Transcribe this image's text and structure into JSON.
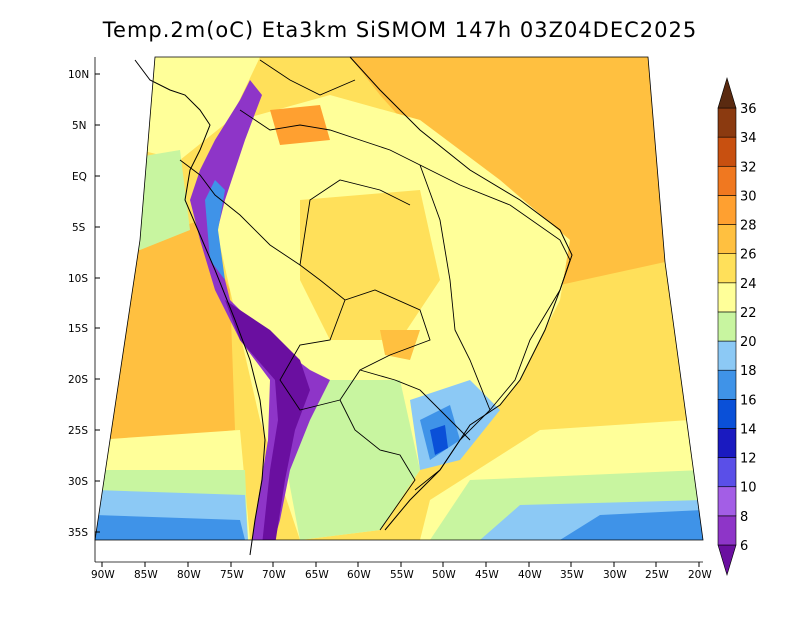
{
  "title": "Temp.2m(oC) Eta3km SiSMOM 147h 03Z04DEC2025",
  "map": {
    "lat_labels": [
      "10N",
      "5N",
      "EQ",
      "5S",
      "10S",
      "15S",
      "20S",
      "25S",
      "30S",
      "35S"
    ],
    "lon_labels": [
      "90W",
      "85W",
      "80W",
      "75W",
      "70W",
      "65W",
      "60W",
      "55W",
      "50W",
      "45W",
      "40W",
      "35W",
      "30W",
      "25W",
      "20W"
    ]
  },
  "colorbar": {
    "labels": [
      "6",
      "8",
      "10",
      "12",
      "14",
      "16",
      "18",
      "20",
      "22",
      "24",
      "26",
      "28",
      "30",
      "32",
      "34",
      "36"
    ],
    "colors": [
      "#6a0fa0",
      "#8e35c8",
      "#a35ee6",
      "#5a4fe8",
      "#1a1ac0",
      "#0a50d8",
      "#3f93e8",
      "#8cc9f5",
      "#c8f5a0",
      "#ffff99",
      "#ffe05a",
      "#ffc040",
      "#ffa030",
      "#f07820",
      "#c85010",
      "#8b3a10",
      "#5a2a10"
    ]
  }
}
